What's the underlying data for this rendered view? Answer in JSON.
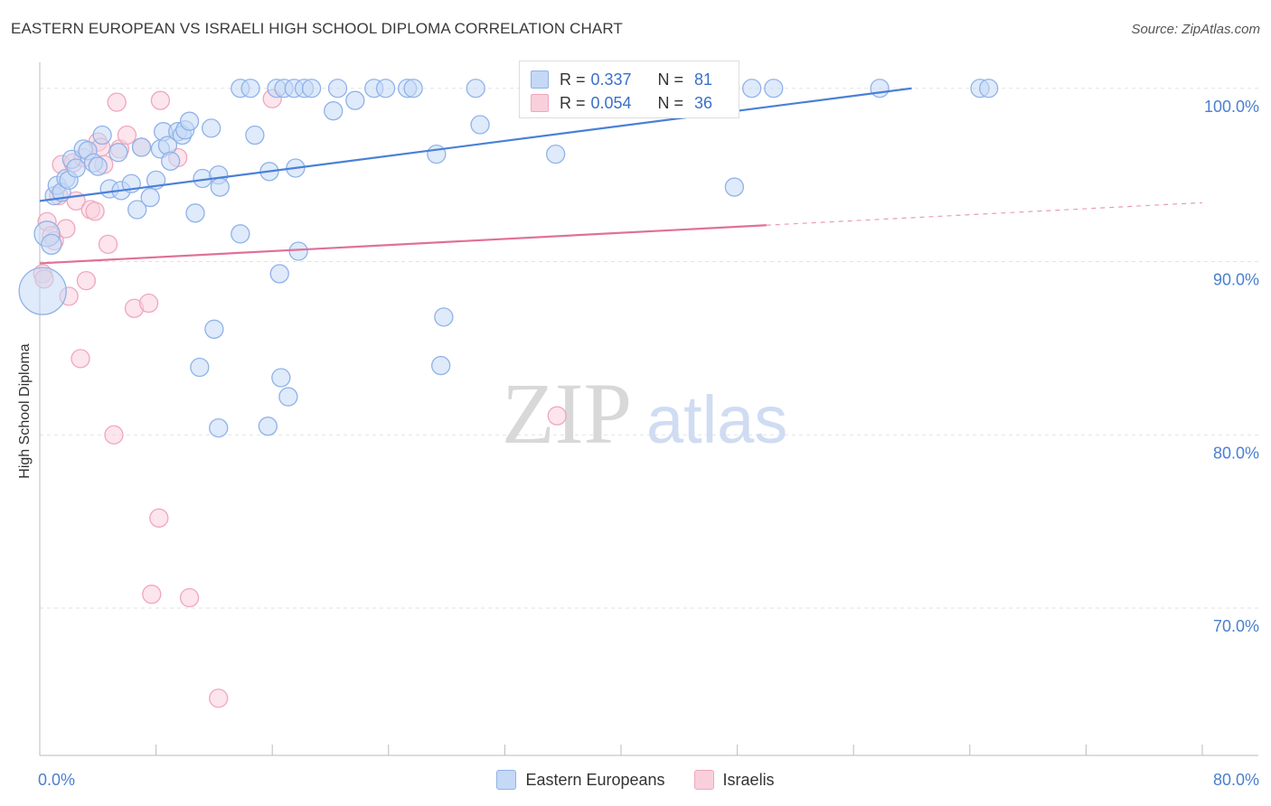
{
  "header": {
    "title": "EASTERN EUROPEAN VS ISRAELI HIGH SCHOOL DIPLOMA CORRELATION CHART",
    "source": "Source: ZipAtlas.com"
  },
  "watermark": {
    "zip": "ZIP",
    "atlas": "atlas"
  },
  "stats": [
    {
      "r_label": "R =",
      "r_value": "0.337",
      "n_label": "N =",
      "n_value": "81",
      "color": "#8fb2e8",
      "fill": "#c5d8f5"
    },
    {
      "r_label": "R =",
      "r_value": "0.054",
      "n_label": "N =",
      "n_value": "36",
      "color": "#f0a6bd",
      "fill": "#f9cfdc"
    }
  ],
  "legend": [
    {
      "label": "Eastern Europeans",
      "color": "#8fb2e8",
      "fill": "#c5d8f5"
    },
    {
      "label": "Israelis",
      "color": "#f0a6bd",
      "fill": "#f9cfdc"
    }
  ],
  "chart_data": {
    "type": "scatter",
    "title": "EASTERN EUROPEAN VS ISRAELI HIGH SCHOOL DIPLOMA CORRELATION CHART",
    "xlabel": "",
    "ylabel": "High School Diploma",
    "xlim": [
      0,
      80
    ],
    "ylim": [
      61.5,
      101.5
    ],
    "x_tick_labels": [
      "0.0%",
      "80.0%"
    ],
    "y_ticks": [
      70,
      80,
      90,
      100
    ],
    "y_tick_labels": [
      "70.0%",
      "80.0%",
      "90.0%",
      "100.0%"
    ],
    "grid": true,
    "legend_position": "bottom",
    "series": [
      {
        "name": "Eastern Europeans",
        "color": "#4a80d8",
        "fill": "#c5d8f5",
        "trend": {
          "x": [
            0,
            60
          ],
          "y": [
            93.5,
            100.0
          ]
        },
        "points": [
          [
            0.2,
            88.3,
            26
          ],
          [
            0.5,
            91.6,
            14
          ],
          [
            0.8,
            91.0,
            11
          ],
          [
            1.0,
            93.8,
            10
          ],
          [
            1.2,
            94.4,
            10
          ],
          [
            1.5,
            94.0,
            10
          ],
          [
            1.8,
            94.8,
            10
          ],
          [
            2.0,
            94.7,
            10
          ],
          [
            2.2,
            95.9,
            10
          ],
          [
            2.5,
            95.4,
            10
          ],
          [
            3.0,
            96.5,
            10
          ],
          [
            3.3,
            96.4,
            10
          ],
          [
            3.7,
            95.7,
            10
          ],
          [
            4.0,
            95.5,
            10
          ],
          [
            4.3,
            97.3,
            10
          ],
          [
            4.8,
            94.2,
            10
          ],
          [
            5.4,
            96.3,
            10
          ],
          [
            5.6,
            94.1,
            10
          ],
          [
            6.3,
            94.5,
            10
          ],
          [
            6.7,
            93.0,
            10
          ],
          [
            7.0,
            96.6,
            10
          ],
          [
            7.6,
            93.7,
            10
          ],
          [
            8.0,
            94.7,
            10
          ],
          [
            8.3,
            96.5,
            10
          ],
          [
            8.5,
            97.5,
            10
          ],
          [
            8.8,
            96.7,
            10
          ],
          [
            9.0,
            95.8,
            10
          ],
          [
            9.5,
            97.5,
            10
          ],
          [
            9.8,
            97.3,
            10
          ],
          [
            10.0,
            97.6,
            10
          ],
          [
            10.3,
            98.1,
            10
          ],
          [
            10.7,
            92.8,
            10
          ],
          [
            11.2,
            94.8,
            10
          ],
          [
            11.8,
            97.7,
            10
          ],
          [
            12.3,
            95.0,
            10
          ],
          [
            12.4,
            94.3,
            10
          ],
          [
            13.8,
            91.6,
            10
          ],
          [
            14.8,
            97.3,
            10
          ],
          [
            15.8,
            95.2,
            10
          ],
          [
            17.6,
            95.4,
            10
          ],
          [
            17.8,
            90.6,
            10
          ],
          [
            16.5,
            89.3,
            10
          ],
          [
            11.0,
            83.9,
            10
          ],
          [
            12.0,
            86.1,
            10
          ],
          [
            12.3,
            80.4,
            10
          ],
          [
            15.7,
            80.5,
            10
          ],
          [
            16.6,
            83.3,
            10
          ],
          [
            17.1,
            82.2,
            10
          ],
          [
            27.8,
            86.8,
            10
          ],
          [
            27.6,
            84.0,
            10
          ],
          [
            13.8,
            100.0,
            10
          ],
          [
            14.5,
            100.0,
            10
          ],
          [
            16.3,
            100.0,
            10
          ],
          [
            16.8,
            100.0,
            10
          ],
          [
            17.5,
            100.0,
            10
          ],
          [
            18.2,
            100.0,
            10
          ],
          [
            18.7,
            100.0,
            10
          ],
          [
            20.5,
            100.0,
            10
          ],
          [
            20.2,
            98.7,
            10
          ],
          [
            21.7,
            99.3,
            10
          ],
          [
            23.0,
            100.0,
            10
          ],
          [
            23.8,
            100.0,
            10
          ],
          [
            25.3,
            100.0,
            10
          ],
          [
            25.7,
            100.0,
            10
          ],
          [
            27.3,
            96.2,
            10
          ],
          [
            30.0,
            100.0,
            10
          ],
          [
            30.3,
            97.9,
            10
          ],
          [
            34.2,
            100.0,
            10
          ],
          [
            35.5,
            96.2,
            10
          ],
          [
            37.2,
            100.0,
            10
          ],
          [
            38.5,
            100.0,
            10
          ],
          [
            40.6,
            100.0,
            10
          ],
          [
            45.0,
            100.0,
            10
          ],
          [
            45.8,
            100.0,
            10
          ],
          [
            47.5,
            100.0,
            10
          ],
          [
            47.8,
            94.3,
            10
          ],
          [
            49.0,
            100.0,
            10
          ],
          [
            50.5,
            100.0,
            10
          ],
          [
            57.8,
            100.0,
            10
          ],
          [
            64.7,
            100.0,
            10
          ],
          [
            65.3,
            100.0,
            10
          ]
        ]
      },
      {
        "name": "Israelis",
        "color": "#e0709a",
        "fill": "#f9cfdc",
        "trend": {
          "x": [
            0,
            50
          ],
          "y": [
            89.9,
            92.1
          ]
        },
        "trend_dashed": {
          "x": [
            50,
            80
          ],
          "y": [
            92.1,
            93.4
          ]
        },
        "points": [
          [
            0.2,
            89.3,
            10
          ],
          [
            0.3,
            89.0,
            10
          ],
          [
            0.5,
            92.3,
            10
          ],
          [
            0.8,
            91.5,
            10
          ],
          [
            1.0,
            91.2,
            10
          ],
          [
            1.3,
            93.8,
            10
          ],
          [
            1.5,
            95.6,
            10
          ],
          [
            1.8,
            91.9,
            10
          ],
          [
            2.0,
            88.0,
            10
          ],
          [
            2.3,
            95.7,
            10
          ],
          [
            2.5,
            93.5,
            10
          ],
          [
            3.0,
            96.0,
            10
          ],
          [
            3.2,
            88.9,
            10
          ],
          [
            3.5,
            93.0,
            10
          ],
          [
            4.0,
            96.9,
            10
          ],
          [
            4.4,
            95.6,
            10
          ],
          [
            4.7,
            91.0,
            10
          ],
          [
            5.3,
            99.2,
            10
          ],
          [
            5.5,
            96.5,
            10
          ],
          [
            6.0,
            97.3,
            10
          ],
          [
            6.5,
            87.3,
            10
          ],
          [
            7.0,
            96.6,
            10
          ],
          [
            7.5,
            87.6,
            10
          ],
          [
            8.3,
            99.3,
            10
          ],
          [
            9.5,
            96.0,
            10
          ],
          [
            2.8,
            84.4,
            10
          ],
          [
            5.1,
            80.0,
            10
          ],
          [
            8.2,
            75.2,
            10
          ],
          [
            7.7,
            70.8,
            10
          ],
          [
            10.3,
            70.6,
            10
          ],
          [
            12.3,
            64.8,
            10
          ],
          [
            3.8,
            92.9,
            10
          ],
          [
            16.0,
            99.4,
            10
          ],
          [
            35.6,
            81.1,
            10
          ],
          [
            47.5,
            100.0,
            10
          ],
          [
            4.2,
            96.6,
            10
          ]
        ]
      }
    ]
  }
}
